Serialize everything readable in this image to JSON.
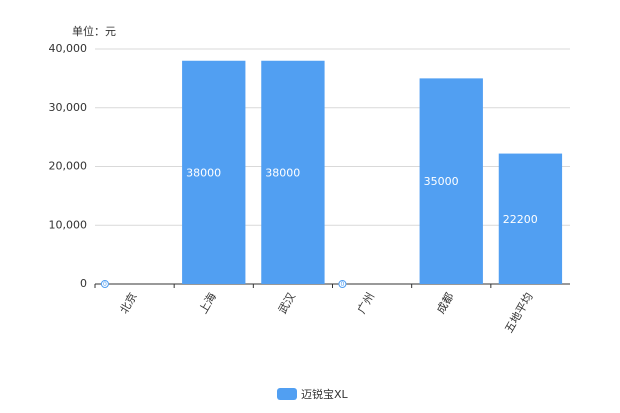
{
  "chart_data": {
    "type": "bar",
    "y_label": "单位：元",
    "categories": [
      "北京",
      "上海",
      "武汉",
      "广州",
      "成都",
      "五地平均"
    ],
    "series": [
      {
        "name": "迈锐宝XL",
        "color": "#519ff2",
        "values": [
          0,
          38000,
          38000,
          0,
          35000,
          22200
        ]
      }
    ],
    "ylim": [
      0,
      40000
    ],
    "yticks": [
      0,
      {
        "value": 10000,
        "label": "10,000"
      },
      {
        "value": 20000,
        "label": "20,000"
      },
      {
        "value": 30000,
        "label": "30,000"
      },
      {
        "value": 40000,
        "label": "40,000"
      }
    ],
    "grid": true,
    "legend": "bottom"
  }
}
